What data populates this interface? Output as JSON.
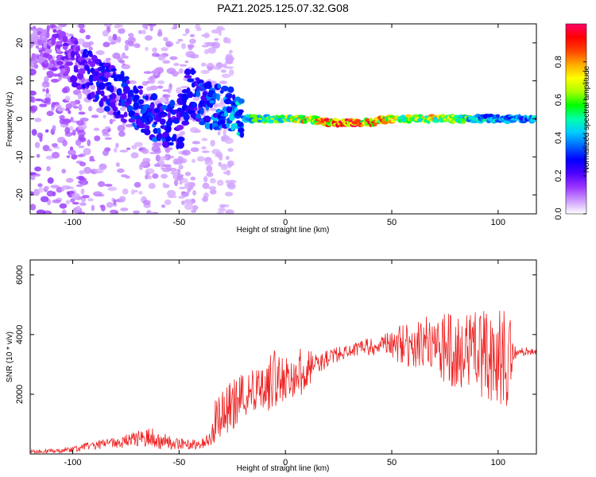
{
  "title": "PAZ1.2025.125.07.32.G08",
  "chart_data": [
    {
      "type": "heatmap",
      "xlabel": "Height of straight line (km)",
      "ylabel": "Frequency (Hz)",
      "xlim": [
        -120,
        118
      ],
      "ylim": [
        -25,
        25
      ],
      "xticks": [
        -100,
        -50,
        0,
        50,
        100
      ],
      "yticks": [
        -20,
        -10,
        0,
        10,
        20
      ],
      "colorbar": {
        "label": "Normalized spectral amplitude",
        "range": [
          0,
          1
        ],
        "ticks": [
          0.0,
          0.2,
          0.4,
          0.6,
          0.8
        ],
        "colors": [
          "#ffffff",
          "#cc99ff",
          "#9933ff",
          "#4b00ff",
          "#0000ff",
          "#0066ff",
          "#00ccff",
          "#00ffaa",
          "#00ff00",
          "#aaff00",
          "#ffff00",
          "#ffaa00",
          "#ff4400",
          "#ff0000",
          "#ff0066"
        ]
      },
      "ridge": {
        "x": [
          -120,
          -110,
          -100,
          -90,
          -80,
          -70,
          -60,
          -50,
          -45,
          -40,
          -35,
          -30,
          -25,
          -20,
          -15,
          -10,
          0,
          10,
          20,
          30,
          40,
          50,
          60,
          70,
          80,
          90,
          100,
          110,
          118
        ],
        "freq": [
          20,
          18,
          15,
          11,
          7,
          3,
          0,
          -2,
          8,
          5,
          3,
          3,
          2,
          0,
          0,
          0,
          0,
          0,
          -1,
          -1,
          -1,
          0,
          0,
          0,
          0,
          0,
          0,
          0,
          0
        ],
        "amplitude": [
          0.1,
          0.15,
          0.2,
          0.3,
          0.3,
          0.35,
          0.35,
          0.3,
          0.3,
          0.35,
          0.4,
          0.4,
          0.45,
          0.5,
          0.6,
          0.65,
          0.7,
          0.85,
          0.95,
          1.0,
          0.95,
          0.8,
          0.75,
          0.8,
          0.7,
          0.55,
          0.45,
          0.45,
          0.5
        ]
      }
    },
    {
      "type": "line",
      "xlabel": "Height of straight line (km)",
      "ylabel": "SNR (10 * v/v)",
      "xlim": [
        -120,
        118
      ],
      "ylim": [
        0,
        6500
      ],
      "xticks": [
        -100,
        -50,
        0,
        50,
        100
      ],
      "yticks": [
        2000,
        4000,
        6000
      ],
      "series": [
        {
          "color": "#ee2222",
          "x": [
            -120,
            -110,
            -100,
            -90,
            -80,
            -70,
            -65,
            -60,
            -50,
            -40,
            -35,
            -33,
            -30,
            -25,
            -20,
            -15,
            -10,
            -5,
            0,
            5,
            10,
            15,
            20,
            25,
            30,
            35,
            40,
            45,
            50,
            55,
            60,
            65,
            70,
            75,
            80,
            85,
            90,
            95,
            100,
            103,
            105,
            107,
            110,
            118
          ],
          "values": [
            80,
            100,
            150,
            300,
            350,
            500,
            600,
            450,
            350,
            300,
            600,
            1100,
            1400,
            1700,
            2000,
            2200,
            2300,
            2500,
            2600,
            2700,
            2800,
            3000,
            3200,
            3350,
            3450,
            3550,
            3600,
            3650,
            3700,
            3650,
            3600,
            3700,
            3650,
            3600,
            3500,
            3600,
            3500,
            3400,
            3300,
            3200,
            3300,
            3400,
            3450,
            3400
          ],
          "amplitude": [
            60,
            80,
            100,
            150,
            200,
            250,
            400,
            300,
            200,
            150,
            500,
            700,
            800,
            900,
            900,
            800,
            900,
            1000,
            800,
            900,
            700,
            400,
            300,
            250,
            200,
            250,
            300,
            350,
            500,
            700,
            700,
            900,
            1000,
            1200,
            1300,
            1400,
            1500,
            1600,
            1600,
            1700,
            1800,
            300,
            150,
            120
          ]
        }
      ]
    }
  ]
}
